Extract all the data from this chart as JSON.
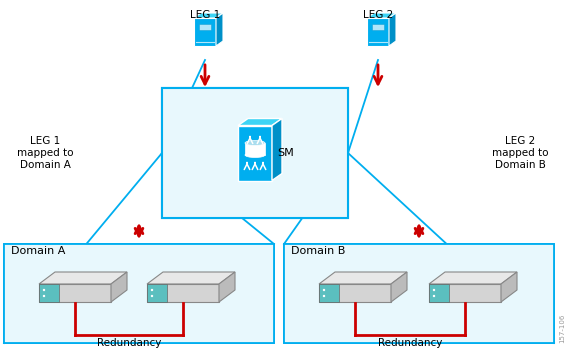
{
  "bg_color": "#ffffff",
  "cyan": "#00AEEF",
  "cyan_dark": "#0090C8",
  "cyan_light_fill": "#E8F8FD",
  "cyan_mid": "#3DD4F5",
  "red": "#CC0000",
  "gray_light": "#D4D4D4",
  "gray_mid": "#BBBBBB",
  "gray_top": "#E8E8E8",
  "teal_sce": "#5BBFBF",
  "leg1_label": "LEG 1",
  "leg2_label": "LEG 2",
  "sm_label": "SM",
  "leg1_map": "LEG 1\nmapped to\nDomain A",
  "leg2_map": "LEG 2\nmapped to\nDomain B",
  "domain_a": "Domain A",
  "domain_b": "Domain B",
  "redundancy": "Redundancy",
  "watermark": "157-106",
  "fig_w": 5.68,
  "fig_h": 3.48,
  "dpi": 100
}
